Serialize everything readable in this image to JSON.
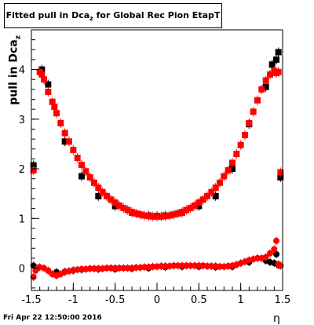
{
  "title": {
    "prefix": "Fitted pull in Dca",
    "subscript": "z",
    "suffix": " for Global Rec Pion EtapT"
  },
  "axis_labels": {
    "y_prefix": "pull in Dca",
    "y_subscript": "z",
    "x": "η"
  },
  "timestamp": "Fri Apr 22 12:50:00 2016",
  "colors": {
    "series_black": "#000000",
    "series_red": "#ff0000",
    "axis": "#000000"
  },
  "chart_data": {
    "type": "scatter",
    "xlim": [
      -1.5,
      1.5
    ],
    "ylim": [
      -0.45,
      4.8
    ],
    "x_ticks": [
      "-1.5",
      "-1",
      "-0.5",
      "0",
      "0.5",
      "1",
      "1.5"
    ],
    "y_ticks": [
      "0",
      "1",
      "2",
      "3",
      "4"
    ],
    "grid": false,
    "legend": "none",
    "series": [
      {
        "marker": "square",
        "color": "#000000",
        "x": [
          -1.475,
          -1.375,
          -1.3,
          -1.1,
          -0.9,
          -0.7,
          -0.5,
          -0.3,
          -0.1,
          0,
          0.1,
          0.3,
          0.5,
          0.7,
          0.9,
          1.1,
          1.3,
          1.375,
          1.425,
          1.45,
          1.475
        ],
        "y": [
          2.07,
          4.0,
          3.7,
          2.55,
          1.85,
          1.45,
          1.25,
          1.12,
          1.06,
          1.05,
          1.06,
          1.12,
          1.25,
          1.45,
          2.0,
          2.9,
          3.65,
          4.1,
          4.2,
          4.35,
          1.83
        ]
      },
      {
        "marker": "square",
        "color": "#ff0000",
        "x": [
          -1.475,
          -1.4,
          -1.375,
          -1.35,
          -1.3,
          -1.25,
          -1.225,
          -1.2,
          -1.15,
          -1.1,
          -1.05,
          -1.0,
          -0.95,
          -0.9,
          -0.85,
          -0.8,
          -0.75,
          -0.7,
          -0.65,
          -0.6,
          -0.55,
          -0.5,
          -0.45,
          -0.4,
          -0.35,
          -0.3,
          -0.25,
          -0.2,
          -0.15,
          -0.1,
          -0.05,
          0,
          0.05,
          0.1,
          0.15,
          0.2,
          0.25,
          0.3,
          0.35,
          0.4,
          0.45,
          0.5,
          0.55,
          0.6,
          0.65,
          0.7,
          0.75,
          0.8,
          0.85,
          0.9,
          0.95,
          1.0,
          1.05,
          1.1,
          1.15,
          1.2,
          1.25,
          1.3,
          1.35,
          1.4,
          1.425,
          1.45,
          1.475
        ],
        "y": [
          1.97,
          3.95,
          3.9,
          3.8,
          3.55,
          3.35,
          3.25,
          3.12,
          2.92,
          2.72,
          2.55,
          2.38,
          2.22,
          2.08,
          1.95,
          1.83,
          1.72,
          1.62,
          1.53,
          1.45,
          1.38,
          1.32,
          1.26,
          1.21,
          1.17,
          1.13,
          1.1,
          1.08,
          1.06,
          1.05,
          1.04,
          1.04,
          1.04,
          1.05,
          1.06,
          1.08,
          1.1,
          1.13,
          1.17,
          1.21,
          1.26,
          1.32,
          1.38,
          1.45,
          1.53,
          1.62,
          1.72,
          1.85,
          1.97,
          2.12,
          2.3,
          2.48,
          2.68,
          2.92,
          3.15,
          3.38,
          3.6,
          3.78,
          3.9,
          3.97,
          3.93,
          3.95,
          1.93
        ]
      },
      {
        "marker": "circle",
        "color": "#000000",
        "x": [
          -1.475,
          -1.425,
          -1.3,
          -1.2,
          -1.1,
          -1.0,
          -0.9,
          -0.7,
          -0.5,
          -0.3,
          -0.1,
          0.1,
          0.3,
          0.5,
          0.7,
          0.9,
          1.1,
          1.3,
          1.35,
          1.4,
          1.425,
          1.45,
          1.475
        ],
        "y": [
          0.05,
          0.0,
          -0.05,
          -0.08,
          -0.07,
          -0.05,
          -0.03,
          -0.02,
          -0.02,
          -0.01,
          0.0,
          0.02,
          0.03,
          0.03,
          0.02,
          0.03,
          0.12,
          0.15,
          0.12,
          0.1,
          0.28,
          0.06,
          0.05
        ]
      },
      {
        "marker": "circle",
        "color": "#ff0000",
        "x": [
          -1.475,
          -1.45,
          -1.425,
          -1.4,
          -1.35,
          -1.3,
          -1.25,
          -1.2,
          -1.15,
          -1.1,
          -1.05,
          -1.0,
          -0.95,
          -0.9,
          -0.85,
          -0.8,
          -0.75,
          -0.7,
          -0.65,
          -0.6,
          -0.55,
          -0.5,
          -0.45,
          -0.4,
          -0.35,
          -0.3,
          -0.25,
          -0.2,
          -0.15,
          -0.1,
          -0.05,
          0,
          0.05,
          0.1,
          0.15,
          0.2,
          0.25,
          0.3,
          0.35,
          0.4,
          0.45,
          0.5,
          0.55,
          0.6,
          0.65,
          0.7,
          0.75,
          0.8,
          0.85,
          0.9,
          0.95,
          1.0,
          1.05,
          1.1,
          1.15,
          1.2,
          1.25,
          1.3,
          1.35,
          1.4,
          1.425,
          1.45,
          1.475
        ],
        "y": [
          -0.18,
          -0.05,
          0.0,
          0.02,
          0.0,
          -0.05,
          -0.12,
          -0.15,
          -0.12,
          -0.08,
          -0.06,
          -0.04,
          -0.03,
          -0.02,
          -0.02,
          -0.01,
          -0.01,
          -0.01,
          -0.01,
          0.0,
          0.0,
          0.0,
          0.0,
          0.0,
          0.0,
          0.0,
          0.01,
          0.01,
          0.02,
          0.02,
          0.03,
          0.03,
          0.04,
          0.04,
          0.04,
          0.05,
          0.05,
          0.05,
          0.05,
          0.05,
          0.05,
          0.05,
          0.05,
          0.04,
          0.04,
          0.04,
          0.03,
          0.03,
          0.04,
          0.05,
          0.07,
          0.1,
          0.13,
          0.16,
          0.18,
          0.2,
          0.2,
          0.22,
          0.3,
          0.38,
          0.55,
          0.08,
          0.05
        ]
      }
    ]
  }
}
